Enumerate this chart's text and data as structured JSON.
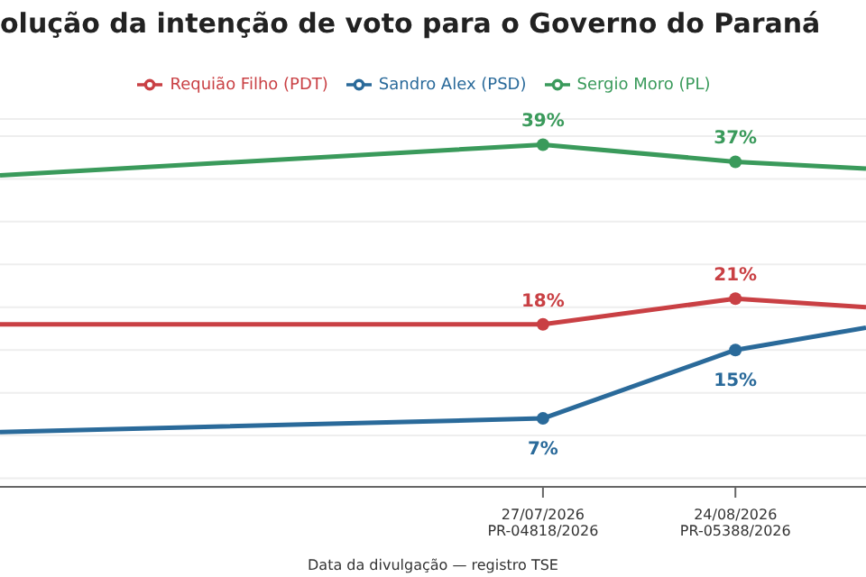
{
  "chart_data": {
    "type": "line",
    "title": "olução da intenção de voto para o Governo do Paraná",
    "xlabel": "Data da divulgação — registro TSE",
    "x": [
      "2026-05-09",
      "2026-07-27",
      "2026-08-24",
      "2026-09-12"
    ],
    "series": [
      {
        "name": "Sergio Moro (PL)",
        "color": "#3a9a5b",
        "values": [
          35.4,
          39,
          37,
          36.2
        ],
        "value_labels": [
          null,
          "39%",
          "37%",
          null
        ]
      },
      {
        "name": "Sandro Alex (PSD)",
        "color": "#2a6a9a",
        "values": [
          5.4,
          7,
          15,
          17.6
        ],
        "value_labels": [
          null,
          "7%",
          "15%",
          null
        ]
      },
      {
        "name": "Requião Filho (PDT)",
        "color": "#c94044",
        "values": [
          18,
          18,
          21,
          20
        ],
        "value_labels": [
          null,
          "18%",
          "21%",
          null
        ]
      }
    ],
    "xlim": [
      "2026-05-09",
      "2026-09-12"
    ],
    "xticks": [
      {
        "value": "2026-07-27",
        "label": "27/07/2026\nPR-04818/2026"
      },
      {
        "value": "2026-08-24",
        "label": "24/08/2026\nPR-05388/2026"
      }
    ],
    "ylim": [
      -1,
      42
    ],
    "yticks": [
      0,
      5,
      10,
      15,
      20,
      25,
      30,
      35,
      40
    ],
    "tick_labels": "x",
    "grid": "y",
    "legend": "top",
    "marker": "circle",
    "line_style": "solid"
  }
}
